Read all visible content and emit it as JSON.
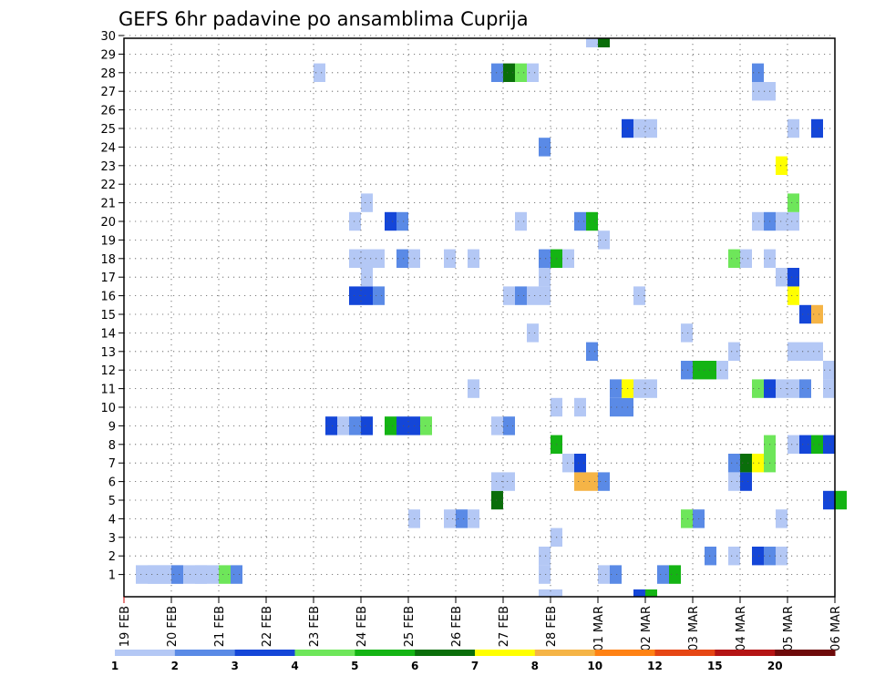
{
  "chart_data": {
    "type": "heatmap",
    "title": "GEFS 6hr padavine po ansamblima Cuprija",
    "xlabel": "",
    "ylabel": "",
    "x_tick_labels": [
      "19 FEB",
      "20 FEB",
      "21 FEB",
      "22 FEB",
      "23 FEB",
      "24 FEB",
      "25 FEB",
      "26 FEB",
      "27 FEB",
      "28 FEB",
      "01 MAR",
      "02 MAR",
      "03 MAR",
      "04 MAR",
      "05 MAR",
      "06 MAR"
    ],
    "y_tick_labels": [
      "1",
      "2",
      "3",
      "4",
      "5",
      "6",
      "7",
      "8",
      "9",
      "10",
      "11",
      "12",
      "13",
      "14",
      "15",
      "16",
      "17",
      "18",
      "19",
      "20",
      "21",
      "22",
      "23",
      "24",
      "25",
      "26",
      "27",
      "28",
      "29",
      "30"
    ],
    "x_range_days": [
      0,
      15
    ],
    "y_range": [
      0,
      30
    ],
    "grid": true,
    "colorbar": {
      "labels": [
        "1",
        "2",
        "3",
        "4",
        "5",
        "6",
        "7",
        "8",
        "10",
        "12",
        "15",
        "20"
      ],
      "colors": [
        "#b4c8f5",
        "#5a8ae6",
        "#1446d8",
        "#6ee65a",
        "#14b414",
        "#0a6e0a",
        "#ffff00",
        "#f5b446",
        "#ff8214",
        "#e64614",
        "#b41414",
        "#6e0a0a"
      ]
    },
    "cells": [
      {
        "t": [
          0.25,
          1
        ],
        "v": 1.5
      },
      {
        "t": [
          1.25,
          1.25
        ],
        "v": 1.5
      },
      {
        "t": [
          0.5,
          2
        ],
        "v": 1.5
      },
      {
        "t": [
          1,
          1.25
        ],
        "v": 2.5
      },
      {
        "t": [
          1.5,
          1.75
        ],
        "v": 1.5
      },
      {
        "t": [
          2,
          2.25
        ],
        "v": 4.5
      },
      {
        "t": [
          2.25,
          2.5
        ],
        "v": 2.5
      },
      {
        "t": [
          8.75,
          9
        ],
        "v": 1.5
      },
      {
        "t": [
          10,
          10.25
        ],
        "v": 1.5
      },
      {
        "t": [
          10.25,
          10.5
        ],
        "v": 2.5
      },
      {
        "t": [
          11.25,
          11.5
        ],
        "v": 2.5
      },
      {
        "t": [
          11.5,
          11.75
        ],
        "v": 5.5
      },
      {
        "t": [
          8.75,
          9
        ],
        "v": 1.5,
        "y": 2
      },
      {
        "t": [
          12.25,
          12.5
        ],
        "v": 2.5,
        "y": 2
      },
      {
        "t": [
          12.75,
          13
        ],
        "v": 1.5,
        "y": 2
      },
      {
        "t": [
          13.25,
          13.5
        ],
        "v": 3.5,
        "y": 2
      },
      {
        "t": [
          13.5,
          13.75
        ],
        "v": 2.5,
        "y": 2
      },
      {
        "t": [
          13.75,
          14
        ],
        "v": 1.5,
        "y": 2
      },
      {
        "t": [
          9,
          9.25
        ],
        "v": 1.5,
        "y": 3
      },
      {
        "t": [
          6,
          6.25
        ],
        "v": 1.5,
        "y": 4
      },
      {
        "t": [
          6.75,
          7
        ],
        "v": 1.5,
        "y": 4
      },
      {
        "t": [
          7,
          7.25
        ],
        "v": 2.5,
        "y": 4
      },
      {
        "t": [
          7.25,
          7.5
        ],
        "v": 1.5,
        "y": 4
      },
      {
        "t": [
          11.75,
          12
        ],
        "v": 4.5,
        "y": 4
      },
      {
        "t": [
          12,
          12.25
        ],
        "v": 2.5,
        "y": 4
      },
      {
        "t": [
          13.75,
          14
        ],
        "v": 1.5,
        "y": 4
      },
      {
        "t": [
          7.75,
          8
        ],
        "v": 6.5,
        "y": 5
      },
      {
        "t": [
          14.75,
          15
        ],
        "v": 3.5,
        "y": 5
      },
      {
        "t": [
          15,
          15.25
        ],
        "v": 5.5,
        "y": 5
      },
      {
        "t": [
          7.75,
          8.25
        ],
        "v": 1.5,
        "y": 6
      },
      {
        "t": [
          9.5,
          10
        ],
        "v": 9,
        "y": 6
      },
      {
        "t": [
          10,
          10.25
        ],
        "v": 2.5,
        "y": 6
      },
      {
        "t": [
          12.75,
          13
        ],
        "v": 1.5,
        "y": 6
      },
      {
        "t": [
          13,
          13.25
        ],
        "v": 3.5,
        "y": 6
      },
      {
        "t": [
          9.25,
          9.5
        ],
        "v": 1.5,
        "y": 7
      },
      {
        "t": [
          9.5,
          9.75
        ],
        "v": 3.5,
        "y": 7
      },
      {
        "t": [
          12.75,
          13
        ],
        "v": 2.5,
        "y": 7
      },
      {
        "t": [
          13,
          13.25
        ],
        "v": 6.5,
        "y": 7
      },
      {
        "t": [
          13.25,
          13.5
        ],
        "v": 7.5,
        "y": 7
      },
      {
        "t": [
          13.5,
          13.75
        ],
        "v": 4.5,
        "y": 7
      },
      {
        "t": [
          9,
          9.25
        ],
        "v": 5.5,
        "y": 8
      },
      {
        "t": [
          13.5,
          13.75
        ],
        "v": 4.5,
        "y": 8
      },
      {
        "t": [
          14,
          14.25
        ],
        "v": 1.5,
        "y": 8
      },
      {
        "t": [
          14.25,
          14.5
        ],
        "v": 3.5,
        "y": 8
      },
      {
        "t": [
          14.5,
          14.75
        ],
        "v": 5.5,
        "y": 8
      },
      {
        "t": [
          14.75,
          15
        ],
        "v": 3.5,
        "y": 8
      },
      {
        "t": [
          4.25,
          4.5
        ],
        "v": 3.5,
        "y": 9
      },
      {
        "t": [
          4.5,
          4.75
        ],
        "v": 1.5,
        "y": 9
      },
      {
        "t": [
          4.75,
          5
        ],
        "v": 2.5,
        "y": 9
      },
      {
        "t": [
          5,
          5.25
        ],
        "v": 3.5,
        "y": 9
      },
      {
        "t": [
          5.5,
          5.75
        ],
        "v": 5.5,
        "y": 9
      },
      {
        "t": [
          5.75,
          6.25
        ],
        "v": 3.5,
        "y": 9
      },
      {
        "t": [
          6.25,
          6.5
        ],
        "v": 4.5,
        "y": 9
      },
      {
        "t": [
          7.75,
          8
        ],
        "v": 1.5,
        "y": 9
      },
      {
        "t": [
          8,
          8.25
        ],
        "v": 2.5,
        "y": 9
      },
      {
        "t": [
          9,
          9.25
        ],
        "v": 1.5,
        "y": 10
      },
      {
        "t": [
          9.5,
          9.75
        ],
        "v": 1.5,
        "y": 10
      },
      {
        "t": [
          10.25,
          10.75
        ],
        "v": 2.5,
        "y": 10
      },
      {
        "t": [
          7.25,
          7.5
        ],
        "v": 1.5,
        "y": 11
      },
      {
        "t": [
          10.25,
          10.5
        ],
        "v": 2.5,
        "y": 11
      },
      {
        "t": [
          10.5,
          10.75
        ],
        "v": 7.5,
        "y": 11
      },
      {
        "t": [
          10.75,
          11.25
        ],
        "v": 1.5,
        "y": 11
      },
      {
        "t": [
          13.25,
          13.5
        ],
        "v": 4.5,
        "y": 11
      },
      {
        "t": [
          13.5,
          13.75
        ],
        "v": 3.5,
        "y": 11
      },
      {
        "t": [
          13.75,
          14.25
        ],
        "v": 1.5,
        "y": 11
      },
      {
        "t": [
          14.25,
          14.5
        ],
        "v": 2.5,
        "y": 11
      },
      {
        "t": [
          14.75,
          15
        ],
        "v": 1.5,
        "y": 11
      },
      {
        "t": [
          11.75,
          12
        ],
        "v": 2.5,
        "y": 12
      },
      {
        "t": [
          12,
          12.5
        ],
        "v": 5.5,
        "y": 12
      },
      {
        "t": [
          12.5,
          12.75
        ],
        "v": 1.5,
        "y": 12
      },
      {
        "t": [
          14.75,
          15
        ],
        "v": 1.5,
        "y": 12
      },
      {
        "t": [
          9.75,
          10
        ],
        "v": 2.5,
        "y": 13
      },
      {
        "t": [
          12.75,
          13
        ],
        "v": 1.5,
        "y": 13
      },
      {
        "t": [
          14,
          14.75
        ],
        "v": 1.5,
        "y": 13
      },
      {
        "t": [
          8.5,
          8.75
        ],
        "v": 1.5,
        "y": 14
      },
      {
        "t": [
          11.75,
          12
        ],
        "v": 1.5,
        "y": 14
      },
      {
        "t": [
          14.25,
          14.5
        ],
        "v": 3.5,
        "y": 15
      },
      {
        "t": [
          14.5,
          14.75
        ],
        "v": 9,
        "y": 15
      },
      {
        "t": [
          4.75,
          5.25
        ],
        "v": 3.5,
        "y": 16
      },
      {
        "t": [
          5.25,
          5.5
        ],
        "v": 2.5,
        "y": 16
      },
      {
        "t": [
          8,
          8.25
        ],
        "v": 1.5,
        "y": 16
      },
      {
        "t": [
          8.25,
          8.5
        ],
        "v": 2.5,
        "y": 16
      },
      {
        "t": [
          8.5,
          9
        ],
        "v": 1.5,
        "y": 16
      },
      {
        "t": [
          10.75,
          11
        ],
        "v": 1.5,
        "y": 16
      },
      {
        "t": [
          14,
          14.25
        ],
        "v": 7.5,
        "y": 16
      },
      {
        "t": [
          5,
          5.25
        ],
        "v": 1.5,
        "y": 17
      },
      {
        "t": [
          8.75,
          9
        ],
        "v": 1.5,
        "y": 17
      },
      {
        "t": [
          13.75,
          14
        ],
        "v": 1.5,
        "y": 17
      },
      {
        "t": [
          14,
          14.25
        ],
        "v": 3.5,
        "y": 17
      },
      {
        "t": [
          4.75,
          5.5
        ],
        "v": 1.5,
        "y": 18
      },
      {
        "t": [
          5.75,
          6
        ],
        "v": 2.5,
        "y": 18
      },
      {
        "t": [
          6,
          6.25
        ],
        "v": 1.5,
        "y": 18
      },
      {
        "t": [
          6.75,
          7
        ],
        "v": 1.5,
        "y": 18
      },
      {
        "t": [
          7.25,
          7.5
        ],
        "v": 1.5,
        "y": 18
      },
      {
        "t": [
          8.75,
          9
        ],
        "v": 2.5,
        "y": 18
      },
      {
        "t": [
          9,
          9.25
        ],
        "v": 5.5,
        "y": 18
      },
      {
        "t": [
          9.25,
          9.5
        ],
        "v": 1.5,
        "y": 18
      },
      {
        "t": [
          12.75,
          13
        ],
        "v": 4.5,
        "y": 18
      },
      {
        "t": [
          13,
          13.25
        ],
        "v": 1.5,
        "y": 18
      },
      {
        "t": [
          13.5,
          13.75
        ],
        "v": 1.5,
        "y": 18
      },
      {
        "t": [
          10,
          10.25
        ],
        "v": 1.5,
        "y": 19
      },
      {
        "t": [
          4.75,
          5
        ],
        "v": 1.5,
        "y": 20
      },
      {
        "t": [
          5.5,
          5.75
        ],
        "v": 3.5,
        "y": 20
      },
      {
        "t": [
          5.75,
          6
        ],
        "v": 2.5,
        "y": 20
      },
      {
        "t": [
          8.25,
          8.5
        ],
        "v": 1.5,
        "y": 20
      },
      {
        "t": [
          9.5,
          9.75
        ],
        "v": 2.5,
        "y": 20
      },
      {
        "t": [
          9.75,
          10
        ],
        "v": 5.5,
        "y": 20
      },
      {
        "t": [
          13.25,
          13.5
        ],
        "v": 1.5,
        "y": 20
      },
      {
        "t": [
          13.5,
          13.75
        ],
        "v": 2.5,
        "y": 20
      },
      {
        "t": [
          13.75,
          14.25
        ],
        "v": 1.5,
        "y": 20
      },
      {
        "t": [
          5,
          5.25
        ],
        "v": 1.5,
        "y": 21
      },
      {
        "t": [
          14,
          14.25
        ],
        "v": 4.5,
        "y": 21
      },
      {
        "t": [
          13.75,
          14
        ],
        "v": 7.5,
        "y": 23
      },
      {
        "t": [
          8.75,
          9
        ],
        "v": 2.5,
        "y": 24
      },
      {
        "t": [
          10.5,
          10.75
        ],
        "v": 3.5,
        "y": 25
      },
      {
        "t": [
          10.75,
          11.25
        ],
        "v": 1.5,
        "y": 25
      },
      {
        "t": [
          14,
          14.25
        ],
        "v": 1.5,
        "y": 25
      },
      {
        "t": [
          14.5,
          14.75
        ],
        "v": 3.5,
        "y": 25
      },
      {
        "t": [
          13.25,
          13.75
        ],
        "v": 1.5,
        "y": 27
      },
      {
        "t": [
          4,
          4.25
        ],
        "v": 1.5,
        "y": 28
      },
      {
        "t": [
          7.75,
          8
        ],
        "v": 2.5,
        "y": 28
      },
      {
        "t": [
          8,
          8.25
        ],
        "v": 6.5,
        "y": 28
      },
      {
        "t": [
          8.25,
          8.5
        ],
        "v": 4.5,
        "y": 28
      },
      {
        "t": [
          8.5,
          8.75
        ],
        "v": 1.5,
        "y": 28
      },
      {
        "t": [
          13.25,
          13.5
        ],
        "v": 2.5,
        "y": 28
      },
      {
        "t": [
          9.75,
          10
        ],
        "v": 1.5,
        "y": 29
      },
      {
        "t": [
          10,
          10.25
        ],
        "v": 6.5,
        "y": 29
      },
      {
        "t": [
          8.75,
          9.25
        ],
        "v": 1.5,
        "y": -1
      },
      {
        "t": [
          10.75,
          11
        ],
        "v": 3.5,
        "y": -1
      },
      {
        "t": [
          11,
          11.25
        ],
        "v": 5.5,
        "y": -1
      }
    ]
  }
}
